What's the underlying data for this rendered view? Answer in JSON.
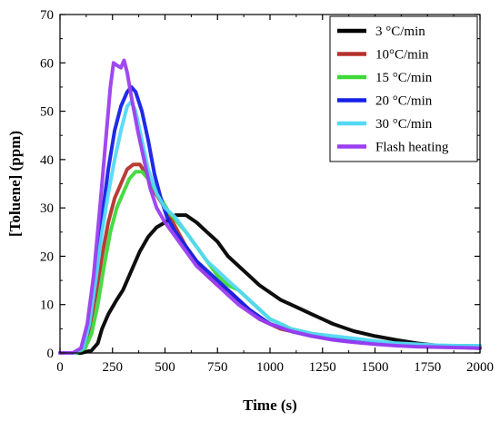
{
  "chart_data": {
    "type": "line",
    "xlabel": "Time (s)",
    "ylabel": "[Toluene] (ppm)",
    "xlim": [
      0,
      2000
    ],
    "ylim": [
      0,
      70
    ],
    "xticks": [
      0,
      250,
      500,
      750,
      1000,
      1250,
      1500,
      1750,
      2000
    ],
    "yticks": [
      0,
      10,
      20,
      30,
      40,
      50,
      60,
      70
    ],
    "grid": false,
    "legend_position": "top-right",
    "series": [
      {
        "name": "3 °C/min",
        "color": "#000000",
        "points": [
          [
            0,
            0
          ],
          [
            100,
            0
          ],
          [
            150,
            0.5
          ],
          [
            180,
            2
          ],
          [
            200,
            5
          ],
          [
            230,
            8
          ],
          [
            270,
            11
          ],
          [
            300,
            13
          ],
          [
            340,
            17
          ],
          [
            380,
            21
          ],
          [
            420,
            24
          ],
          [
            460,
            26
          ],
          [
            500,
            27
          ],
          [
            550,
            28.5
          ],
          [
            600,
            28.5
          ],
          [
            650,
            27
          ],
          [
            700,
            25
          ],
          [
            750,
            23
          ],
          [
            800,
            20
          ],
          [
            850,
            18
          ],
          [
            900,
            16
          ],
          [
            950,
            14
          ],
          [
            1000,
            12.5
          ],
          [
            1050,
            11
          ],
          [
            1100,
            10
          ],
          [
            1150,
            9
          ],
          [
            1200,
            8
          ],
          [
            1250,
            7
          ],
          [
            1300,
            6
          ],
          [
            1400,
            4.5
          ],
          [
            1500,
            3.5
          ],
          [
            1600,
            2.7
          ],
          [
            1700,
            2
          ],
          [
            1800,
            1.5
          ],
          [
            1900,
            1.2
          ],
          [
            2000,
            1
          ]
        ]
      },
      {
        "name": "10°C/min",
        "color": "#b5312b",
        "points": [
          [
            0,
            0
          ],
          [
            70,
            0
          ],
          [
            110,
            1
          ],
          [
            140,
            5
          ],
          [
            170,
            12
          ],
          [
            200,
            20
          ],
          [
            230,
            27
          ],
          [
            260,
            32
          ],
          [
            290,
            35
          ],
          [
            320,
            38
          ],
          [
            350,
            39
          ],
          [
            380,
            39
          ],
          [
            410,
            37
          ],
          [
            440,
            34
          ],
          [
            470,
            32
          ],
          [
            500,
            30
          ],
          [
            550,
            26
          ],
          [
            600,
            22
          ],
          [
            650,
            19
          ],
          [
            700,
            16
          ],
          [
            750,
            14
          ],
          [
            800,
            13
          ],
          [
            850,
            11
          ],
          [
            900,
            9
          ],
          [
            950,
            7
          ],
          [
            1000,
            6
          ],
          [
            1050,
            5
          ],
          [
            1100,
            4.5
          ],
          [
            1200,
            3.5
          ],
          [
            1300,
            3
          ],
          [
            1400,
            2.5
          ],
          [
            1500,
            2
          ],
          [
            1600,
            1.7
          ],
          [
            1700,
            1.5
          ],
          [
            1800,
            1.3
          ],
          [
            1900,
            1.2
          ],
          [
            2000,
            1
          ]
        ]
      },
      {
        "name": "15 °C/min",
        "color": "#3fd83a",
        "points": [
          [
            0,
            0
          ],
          [
            80,
            0
          ],
          [
            120,
            1
          ],
          [
            150,
            4
          ],
          [
            180,
            10
          ],
          [
            210,
            18
          ],
          [
            240,
            25
          ],
          [
            270,
            30
          ],
          [
            300,
            33
          ],
          [
            330,
            36
          ],
          [
            360,
            37.5
          ],
          [
            390,
            37.5
          ],
          [
            420,
            36
          ],
          [
            450,
            34
          ],
          [
            480,
            32
          ],
          [
            520,
            29
          ],
          [
            560,
            27
          ],
          [
            600,
            25
          ],
          [
            650,
            22
          ],
          [
            700,
            19
          ],
          [
            750,
            16
          ],
          [
            800,
            14
          ],
          [
            850,
            13
          ],
          [
            900,
            11
          ],
          [
            950,
            9
          ],
          [
            1000,
            7
          ],
          [
            1050,
            6
          ],
          [
            1100,
            5
          ],
          [
            1200,
            4
          ],
          [
            1300,
            3.2
          ],
          [
            1400,
            2.6
          ],
          [
            1500,
            2.2
          ],
          [
            1600,
            1.9
          ],
          [
            1700,
            1.7
          ],
          [
            1800,
            1.5
          ],
          [
            1900,
            1.5
          ],
          [
            2000,
            1.5
          ]
        ]
      },
      {
        "name": "20 °C/min",
        "color": "#1420e6",
        "points": [
          [
            0,
            0
          ],
          [
            70,
            0
          ],
          [
            110,
            1
          ],
          [
            140,
            6
          ],
          [
            170,
            16
          ],
          [
            200,
            28
          ],
          [
            230,
            38
          ],
          [
            260,
            46
          ],
          [
            290,
            51
          ],
          [
            320,
            54
          ],
          [
            340,
            55
          ],
          [
            360,
            54
          ],
          [
            390,
            50
          ],
          [
            420,
            44
          ],
          [
            450,
            37
          ],
          [
            480,
            32
          ],
          [
            510,
            28
          ],
          [
            550,
            25
          ],
          [
            600,
            22
          ],
          [
            650,
            19
          ],
          [
            700,
            17
          ],
          [
            750,
            15
          ],
          [
            800,
            13
          ],
          [
            850,
            11
          ],
          [
            900,
            9
          ],
          [
            950,
            7.5
          ],
          [
            1000,
            6
          ],
          [
            1100,
            4.5
          ],
          [
            1200,
            3.5
          ],
          [
            1300,
            2.8
          ],
          [
            1400,
            2.3
          ],
          [
            1500,
            2
          ],
          [
            1600,
            1.7
          ],
          [
            1700,
            1.5
          ],
          [
            1800,
            1.4
          ],
          [
            1900,
            1.3
          ],
          [
            2000,
            1.2
          ]
        ]
      },
      {
        "name": "30 °C/min",
        "color": "#55d8f5",
        "points": [
          [
            0,
            0
          ],
          [
            70,
            0
          ],
          [
            110,
            1
          ],
          [
            140,
            6
          ],
          [
            170,
            15
          ],
          [
            200,
            25
          ],
          [
            230,
            33
          ],
          [
            260,
            40
          ],
          [
            290,
            46
          ],
          [
            320,
            51
          ],
          [
            340,
            52
          ],
          [
            360,
            50
          ],
          [
            390,
            44
          ],
          [
            420,
            38
          ],
          [
            460,
            33
          ],
          [
            500,
            30
          ],
          [
            550,
            28
          ],
          [
            600,
            25
          ],
          [
            650,
            22
          ],
          [
            700,
            19
          ],
          [
            750,
            17
          ],
          [
            800,
            15
          ],
          [
            850,
            13
          ],
          [
            900,
            11
          ],
          [
            950,
            9
          ],
          [
            1000,
            7
          ],
          [
            1050,
            6
          ],
          [
            1100,
            5
          ],
          [
            1200,
            4
          ],
          [
            1300,
            3.5
          ],
          [
            1400,
            3
          ],
          [
            1500,
            2.5
          ],
          [
            1600,
            2
          ],
          [
            1700,
            1.8
          ],
          [
            1800,
            1.6
          ],
          [
            1900,
            1.5
          ],
          [
            2000,
            1.5
          ]
        ]
      },
      {
        "name": "Flash heating",
        "color": "#9b3ef0",
        "points": [
          [
            0,
            0
          ],
          [
            60,
            0
          ],
          [
            100,
            1
          ],
          [
            130,
            6
          ],
          [
            160,
            16
          ],
          [
            190,
            30
          ],
          [
            220,
            45
          ],
          [
            240,
            55
          ],
          [
            255,
            60
          ],
          [
            270,
            59.5
          ],
          [
            290,
            59
          ],
          [
            305,
            60.5
          ],
          [
            320,
            58
          ],
          [
            340,
            53
          ],
          [
            370,
            46
          ],
          [
            400,
            40
          ],
          [
            430,
            34
          ],
          [
            460,
            30
          ],
          [
            500,
            27
          ],
          [
            550,
            24
          ],
          [
            600,
            21
          ],
          [
            650,
            18
          ],
          [
            700,
            16
          ],
          [
            750,
            14
          ],
          [
            800,
            12
          ],
          [
            850,
            10
          ],
          [
            900,
            8.5
          ],
          [
            950,
            7
          ],
          [
            1000,
            6
          ],
          [
            1100,
            4.5
          ],
          [
            1200,
            3.5
          ],
          [
            1300,
            2.7
          ],
          [
            1400,
            2.2
          ],
          [
            1500,
            1.8
          ],
          [
            1600,
            1.5
          ],
          [
            1700,
            1.3
          ],
          [
            1800,
            1.2
          ],
          [
            1900,
            1.1
          ],
          [
            2000,
            1
          ]
        ]
      }
    ]
  }
}
